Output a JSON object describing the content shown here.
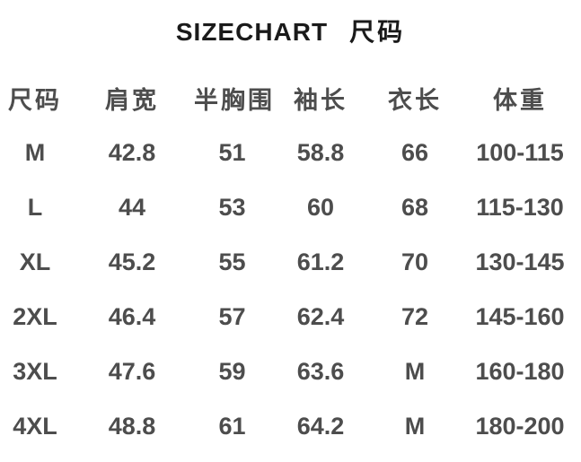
{
  "title": {
    "latin": "SIZECHART",
    "cn": "尺码"
  },
  "colors": {
    "background": "#ffffff",
    "title": "#1a1a1a",
    "text": "#4d4d4d"
  },
  "table": {
    "headers": [
      "尺码",
      "肩宽",
      "半胸围",
      "袖长",
      "衣长",
      "体重"
    ],
    "rows": [
      [
        "M",
        "42.8",
        "51",
        "58.8",
        "66",
        "100-115"
      ],
      [
        "L",
        "44",
        "53",
        "60",
        "68",
        "115-130"
      ],
      [
        "XL",
        "45.2",
        "55",
        "61.2",
        "70",
        "130-145"
      ],
      [
        "2XL",
        "46.4",
        "57",
        "62.4",
        "72",
        "145-160"
      ],
      [
        "3XL",
        "47.6",
        "59",
        "63.6",
        "M",
        "160-180"
      ],
      [
        "4XL",
        "48.8",
        "61",
        "64.2",
        "M",
        "180-200"
      ]
    ]
  }
}
